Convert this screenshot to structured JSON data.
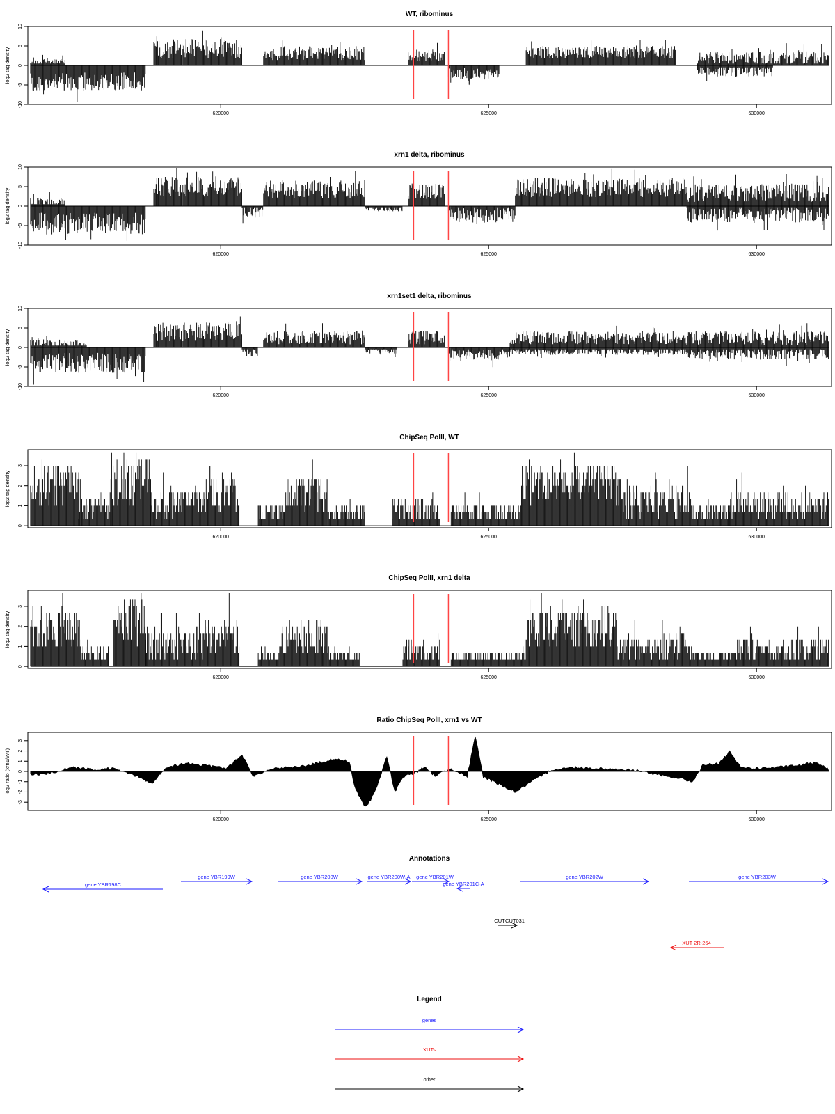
{
  "chart_data": [
    {
      "type": "bar",
      "title": "WT, ribominus",
      "ylabel": "log2 tag density",
      "ylim": [
        -10,
        10
      ],
      "yticks": [
        "-10",
        "-5",
        "0",
        "5",
        "10"
      ],
      "xlim": [
        616400,
        631400
      ],
      "xticks": [
        "620000",
        "625000",
        "630000"
      ],
      "vlines": [
        623600,
        624250
      ],
      "segments": [
        {
          "start": 616450,
          "end": 618600,
          "level": -4.2,
          "amp": 2.4,
          "seed": 11
        },
        {
          "start": 616450,
          "end": 617100,
          "level": 0.8,
          "amp": 1.2,
          "seed": 12
        },
        {
          "start": 618750,
          "end": 620400,
          "level": 4.3,
          "amp": 2.5,
          "seed": 13
        },
        {
          "start": 620800,
          "end": 622700,
          "level": 3.2,
          "amp": 1.8,
          "seed": 14
        },
        {
          "start": 623500,
          "end": 624200,
          "level": 2.6,
          "amp": 1.5,
          "seed": 15
        },
        {
          "start": 624250,
          "end": 625200,
          "level": -2.0,
          "amp": 1.5,
          "seed": 16
        },
        {
          "start": 625700,
          "end": 628500,
          "level": 3.4,
          "amp": 1.6,
          "seed": 17
        },
        {
          "start": 628900,
          "end": 631350,
          "level": 1.8,
          "amp": 1.8,
          "seed": 18
        },
        {
          "start": 628900,
          "end": 630300,
          "level": -1.4,
          "amp": 1.5,
          "seed": 19
        }
      ]
    },
    {
      "type": "bar",
      "title": "xrn1 delta, ribominus",
      "ylabel": "log2 tag density",
      "ylim": [
        -10,
        10
      ],
      "yticks": [
        "-10",
        "-5",
        "0",
        "5",
        "10"
      ],
      "xlim": [
        616400,
        631400
      ],
      "xticks": [
        "620000",
        "625000",
        "630000"
      ],
      "vlines": [
        623600,
        624250
      ],
      "segments": [
        {
          "start": 616450,
          "end": 618600,
          "level": -4.5,
          "amp": 2.8,
          "seed": 21
        },
        {
          "start": 616450,
          "end": 617100,
          "level": 0.9,
          "amp": 1.3,
          "seed": 22
        },
        {
          "start": 618750,
          "end": 620400,
          "level": 5.0,
          "amp": 2.6,
          "seed": 23
        },
        {
          "start": 620400,
          "end": 620800,
          "level": -1.5,
          "amp": 1.5,
          "seed": 24
        },
        {
          "start": 620800,
          "end": 622700,
          "level": 4.4,
          "amp": 2.4,
          "seed": 25
        },
        {
          "start": 622700,
          "end": 623400,
          "level": -0.6,
          "amp": 0.8,
          "seed": 26
        },
        {
          "start": 623500,
          "end": 624200,
          "level": 3.8,
          "amp": 2.0,
          "seed": 27
        },
        {
          "start": 624250,
          "end": 625500,
          "level": -2.3,
          "amp": 2.0,
          "seed": 28
        },
        {
          "start": 625500,
          "end": 628700,
          "level": 4.8,
          "amp": 2.5,
          "seed": 29
        },
        {
          "start": 628700,
          "end": 631350,
          "level": 3.3,
          "amp": 2.3,
          "seed": 30
        },
        {
          "start": 628700,
          "end": 631350,
          "level": -2.2,
          "amp": 2.0,
          "seed": 31
        }
      ]
    },
    {
      "type": "bar",
      "title": "xrn1set1 delta, ribominus",
      "ylabel": "log2 tag density",
      "ylim": [
        -10,
        10
      ],
      "yticks": [
        "-10",
        "-5",
        "0",
        "5",
        "10"
      ],
      "xlim": [
        616400,
        631400
      ],
      "xticks": [
        "620000",
        "625000",
        "630000"
      ],
      "vlines": [
        623600,
        624250
      ],
      "segments": [
        {
          "start": 616450,
          "end": 618600,
          "level": -4.0,
          "amp": 2.6,
          "seed": 41
        },
        {
          "start": 616450,
          "end": 617500,
          "level": 0.8,
          "amp": 1.2,
          "seed": 42
        },
        {
          "start": 618750,
          "end": 620400,
          "level": 4.0,
          "amp": 2.4,
          "seed": 43
        },
        {
          "start": 620400,
          "end": 620700,
          "level": -1.2,
          "amp": 1.0,
          "seed": 44
        },
        {
          "start": 620800,
          "end": 622700,
          "level": 2.6,
          "amp": 1.8,
          "seed": 45
        },
        {
          "start": 622700,
          "end": 623300,
          "level": -0.8,
          "amp": 0.8,
          "seed": 46
        },
        {
          "start": 623500,
          "end": 624200,
          "level": 2.6,
          "amp": 1.8,
          "seed": 47
        },
        {
          "start": 624250,
          "end": 625400,
          "level": -2.0,
          "amp": 1.6,
          "seed": 48
        },
        {
          "start": 625400,
          "end": 628700,
          "level": 2.5,
          "amp": 1.7,
          "seed": 49
        },
        {
          "start": 625400,
          "end": 628700,
          "level": -0.9,
          "amp": 1.0,
          "seed": 50
        },
        {
          "start": 628700,
          "end": 631350,
          "level": 2.3,
          "amp": 1.8,
          "seed": 51
        },
        {
          "start": 628700,
          "end": 631350,
          "level": -1.6,
          "amp": 1.5,
          "seed": 52
        }
      ]
    },
    {
      "type": "bar",
      "title": "ChipSeq PolII, WT",
      "ylabel": "log2 tag density",
      "ylim": [
        -0.1,
        3.8
      ],
      "yticks": [
        "0",
        "1",
        "2",
        "3"
      ],
      "xlim": [
        616400,
        631400
      ],
      "xticks": [
        "620000",
        "625000",
        "630000"
      ],
      "vlines": [
        623600,
        624250
      ],
      "segments": [
        {
          "start": 616450,
          "end": 617350,
          "level": 2.0,
          "amp": 1.2,
          "seed": 61
        },
        {
          "start": 617350,
          "end": 617950,
          "level": 1.0,
          "amp": 0.6,
          "seed": 62
        },
        {
          "start": 617950,
          "end": 618700,
          "level": 2.3,
          "amp": 1.2,
          "seed": 63
        },
        {
          "start": 618700,
          "end": 619700,
          "level": 1.1,
          "amp": 0.8,
          "seed": 64
        },
        {
          "start": 619700,
          "end": 620350,
          "level": 1.6,
          "amp": 1.0,
          "seed": 65
        },
        {
          "start": 620700,
          "end": 621200,
          "level": 0.7,
          "amp": 0.4,
          "seed": 66
        },
        {
          "start": 621200,
          "end": 622000,
          "level": 1.6,
          "amp": 1.0,
          "seed": 67
        },
        {
          "start": 622000,
          "end": 622700,
          "level": 0.6,
          "amp": 0.4,
          "seed": 68
        },
        {
          "start": 623200,
          "end": 624100,
          "level": 0.8,
          "amp": 0.6,
          "seed": 69
        },
        {
          "start": 624300,
          "end": 625600,
          "level": 0.6,
          "amp": 0.5,
          "seed": 70
        },
        {
          "start": 625600,
          "end": 627500,
          "level": 2.1,
          "amp": 1.1,
          "seed": 71
        },
        {
          "start": 627500,
          "end": 628800,
          "level": 1.3,
          "amp": 0.9,
          "seed": 72
        },
        {
          "start": 628800,
          "end": 629500,
          "level": 0.6,
          "amp": 0.4,
          "seed": 73
        },
        {
          "start": 629500,
          "end": 631350,
          "level": 1.0,
          "amp": 0.7,
          "seed": 74
        }
      ]
    },
    {
      "type": "bar",
      "title": "ChipSeq PolII, xrn1 delta",
      "ylabel": "log2 tag density",
      "ylim": [
        -0.1,
        3.8
      ],
      "yticks": [
        "0",
        "1",
        "2",
        "3"
      ],
      "xlim": [
        616400,
        631400
      ],
      "xticks": [
        "620000",
        "625000",
        "630000"
      ],
      "vlines": [
        623600,
        624250
      ],
      "segments": [
        {
          "start": 616450,
          "end": 617400,
          "level": 1.9,
          "amp": 1.0,
          "seed": 81
        },
        {
          "start": 617400,
          "end": 617900,
          "level": 0.7,
          "amp": 0.5,
          "seed": 82
        },
        {
          "start": 618000,
          "end": 618600,
          "level": 2.2,
          "amp": 1.1,
          "seed": 83
        },
        {
          "start": 618600,
          "end": 619700,
          "level": 1.1,
          "amp": 0.8,
          "seed": 84
        },
        {
          "start": 619700,
          "end": 620350,
          "level": 1.5,
          "amp": 1.0,
          "seed": 85
        },
        {
          "start": 620700,
          "end": 621100,
          "level": 0.4,
          "amp": 0.3,
          "seed": 86
        },
        {
          "start": 621100,
          "end": 622000,
          "level": 1.4,
          "amp": 0.9,
          "seed": 87
        },
        {
          "start": 622000,
          "end": 622600,
          "level": 0.5,
          "amp": 0.3,
          "seed": 88
        },
        {
          "start": 623400,
          "end": 624100,
          "level": 0.7,
          "amp": 0.6,
          "seed": 89
        },
        {
          "start": 624300,
          "end": 625700,
          "level": 0.4,
          "amp": 0.3,
          "seed": 90
        },
        {
          "start": 625700,
          "end": 627400,
          "level": 2.0,
          "amp": 1.0,
          "seed": 91
        },
        {
          "start": 627400,
          "end": 628800,
          "level": 0.9,
          "amp": 0.7,
          "seed": 92
        },
        {
          "start": 628800,
          "end": 629600,
          "level": 0.5,
          "amp": 0.3,
          "seed": 93
        },
        {
          "start": 629600,
          "end": 631350,
          "level": 0.8,
          "amp": 0.6,
          "seed": 94
        }
      ]
    },
    {
      "type": "area",
      "title": "Ratio ChipSeq PolII, xrn1 vs WT",
      "ylabel": "log2 ratio (xrn1/WT)",
      "ylim": [
        -3.8,
        3.8
      ],
      "yticks": [
        "-3",
        "-2",
        "-1",
        "0",
        "1",
        "2",
        "3"
      ],
      "xlim": [
        616400,
        631400
      ],
      "xticks": [
        "620000",
        "625000",
        "630000"
      ],
      "vlines": [
        623600,
        624250
      ],
      "x": [
        616450,
        616800,
        617200,
        617600,
        618000,
        618400,
        618700,
        619000,
        619400,
        619800,
        620100,
        620400,
        620600,
        621000,
        621400,
        621800,
        622100,
        622400,
        622500,
        622700,
        622800,
        622950,
        623100,
        623250,
        623400,
        623600,
        623800,
        624000,
        624300,
        624600,
        624750,
        624900,
        625100,
        625300,
        625500,
        625800,
        626200,
        626600,
        627000,
        627400,
        627800,
        628200,
        628500,
        628800,
        629000,
        629300,
        629500,
        629700,
        630000,
        630400,
        630800,
        631100,
        631350
      ],
      "y": [
        -0.3,
        -0.2,
        0.4,
        0.2,
        0.3,
        -0.4,
        -1.2,
        0.4,
        0.8,
        0.5,
        0.3,
        1.6,
        -0.5,
        0.3,
        0.4,
        0.8,
        1.2,
        1.0,
        -1.5,
        -3.5,
        -2.8,
        -1.0,
        1.5,
        -2.0,
        -0.5,
        -0.2,
        0.4,
        -0.4,
        0.3,
        -0.5,
        3.4,
        -0.5,
        -1.0,
        -1.5,
        -2.0,
        -1.0,
        0.2,
        0.4,
        0.3,
        0.2,
        0.1,
        -0.4,
        -0.6,
        -1.0,
        0.6,
        0.8,
        1.9,
        0.4,
        0.3,
        0.4,
        0.6,
        0.9,
        0.3
      ]
    }
  ],
  "annotations": {
    "title": "Annotations",
    "genes": [
      {
        "label": "gene YBR198C",
        "start": 616450,
        "end": 618600,
        "dir": "-"
      },
      {
        "label": "gene YBR199W",
        "start": 618550,
        "end": 620000,
        "dir": "+"
      },
      {
        "label": "gene YBR200W",
        "start": 620500,
        "end": 622200,
        "dir": "+"
      },
      {
        "label": "gene YBR200W-A",
        "start": 622200,
        "end": 623300,
        "dir": "+"
      },
      {
        "label": "gene YBR201W",
        "start": 623400,
        "end": 624100,
        "dir": "+"
      },
      {
        "label": "gene YBR201C-A",
        "start": 624100,
        "end": 624500,
        "dir": "-"
      },
      {
        "label": "gene YBR202W",
        "start": 625700,
        "end": 628300,
        "dir": "+"
      },
      {
        "label": "gene YBR203W",
        "start": 629000,
        "end": 631800,
        "dir": "+"
      }
    ],
    "cuts": [
      {
        "label": "CUT",
        "start": 625300,
        "end": 625700,
        "dir": "+"
      },
      {
        "label": "CUT031",
        "start": 625300,
        "end": 625700,
        "dir": "+"
      }
    ],
    "xuts": [
      {
        "label": "XUT 2R-264",
        "start": 628700,
        "end": 629750,
        "dir": "-"
      }
    ]
  },
  "legend": {
    "title": "Legend",
    "items": [
      {
        "label": "genes",
        "color": "#1a1aff"
      },
      {
        "label": "XUTs",
        "color": "#ee1111"
      },
      {
        "label": "other",
        "color": "#000000"
      }
    ]
  },
  "colors": {
    "gene": "#1a1aff",
    "xut": "#ee1111",
    "other": "#000000",
    "vline": "#ff4444",
    "bars": "#000000"
  }
}
